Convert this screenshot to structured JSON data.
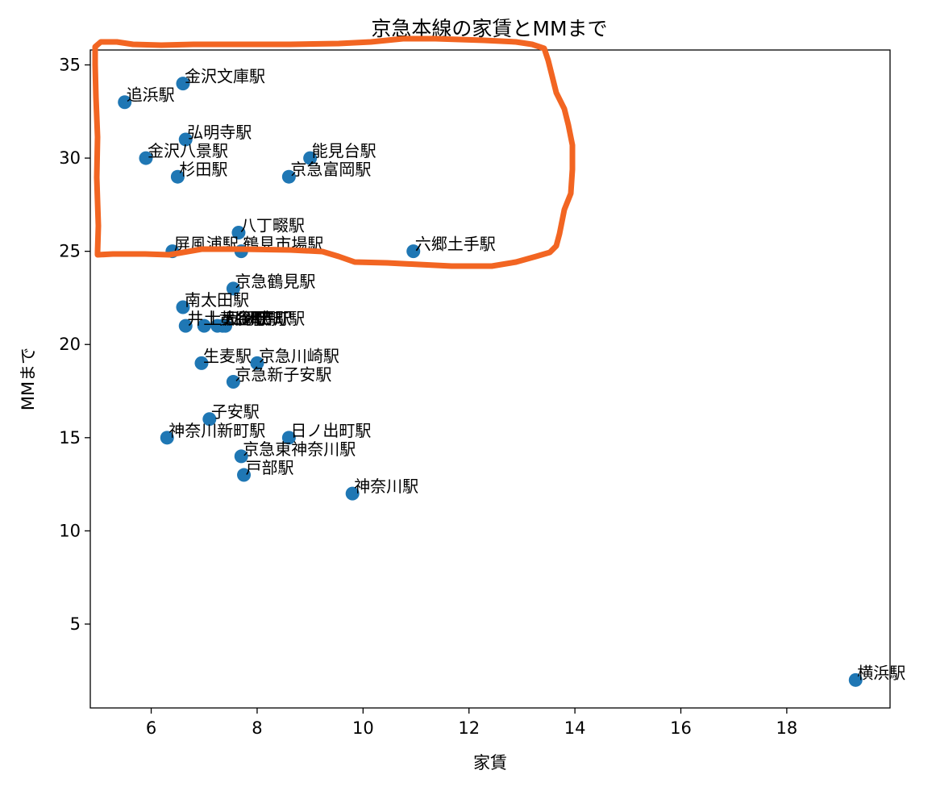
{
  "chart_data": {
    "type": "scatter",
    "title": "京急本線の家賃とMMまで",
    "xlabel": "家賃",
    "ylabel": "MMまで",
    "xlim": [
      4.85,
      19.95
    ],
    "ylim": [
      0.5,
      35.8
    ],
    "xticks": [
      6,
      8,
      10,
      12,
      14,
      16,
      18
    ],
    "yticks": [
      5,
      10,
      15,
      20,
      25,
      30,
      35
    ],
    "marker_color": "#1f77b4",
    "annotation_color": "#f26522",
    "grid": false,
    "points": [
      {
        "label": "金沢文庫駅",
        "x": 6.6,
        "y": 34
      },
      {
        "label": "追浜駅",
        "x": 5.5,
        "y": 33
      },
      {
        "label": "弘明寺駅",
        "x": 6.65,
        "y": 31
      },
      {
        "label": "金沢八景駅",
        "x": 5.9,
        "y": 30
      },
      {
        "label": "杉田駅",
        "x": 6.5,
        "y": 29
      },
      {
        "label": "能見台駅",
        "x": 9.0,
        "y": 30
      },
      {
        "label": "京急富岡駅",
        "x": 8.6,
        "y": 29
      },
      {
        "label": "八丁畷駅",
        "x": 7.65,
        "y": 26
      },
      {
        "label": "屏風浦駅",
        "x": 6.4,
        "y": 25
      },
      {
        "label": "鶴見市場駅",
        "x": 7.7,
        "y": 25
      },
      {
        "label": "六郷土手駅",
        "x": 10.95,
        "y": 25
      },
      {
        "label": "京急鶴見駅",
        "x": 7.55,
        "y": 23
      },
      {
        "label": "南太田駅",
        "x": 6.6,
        "y": 22
      },
      {
        "label": "井土ヶ谷駅",
        "x": 6.65,
        "y": 21
      },
      {
        "label": "上大岡駅",
        "x": 7.0,
        "y": 21
      },
      {
        "label": "黄金町駅",
        "x": 7.25,
        "y": 21
      },
      {
        "label": "日ノ出町駅",
        "x": 7.35,
        "y": 21
      },
      {
        "label": "弘明寺駅",
        "x": 7.4,
        "y": 21
      },
      {
        "label": "生麦駅",
        "x": 6.95,
        "y": 19
      },
      {
        "label": "京急川崎駅",
        "x": 8.0,
        "y": 19
      },
      {
        "label": "京急新子安駅",
        "x": 7.55,
        "y": 18
      },
      {
        "label": "子安駅",
        "x": 7.1,
        "y": 16
      },
      {
        "label": "神奈川新町駅",
        "x": 6.3,
        "y": 15
      },
      {
        "label": "日ノ出町駅",
        "x": 8.6,
        "y": 15
      },
      {
        "label": "京急東神奈川駅",
        "x": 7.7,
        "y": 14
      },
      {
        "label": "戸部駅",
        "x": 7.75,
        "y": 13
      },
      {
        "label": "神奈川駅",
        "x": 9.8,
        "y": 12
      },
      {
        "label": "横浜駅",
        "x": 19.3,
        "y": 2
      }
    ]
  }
}
